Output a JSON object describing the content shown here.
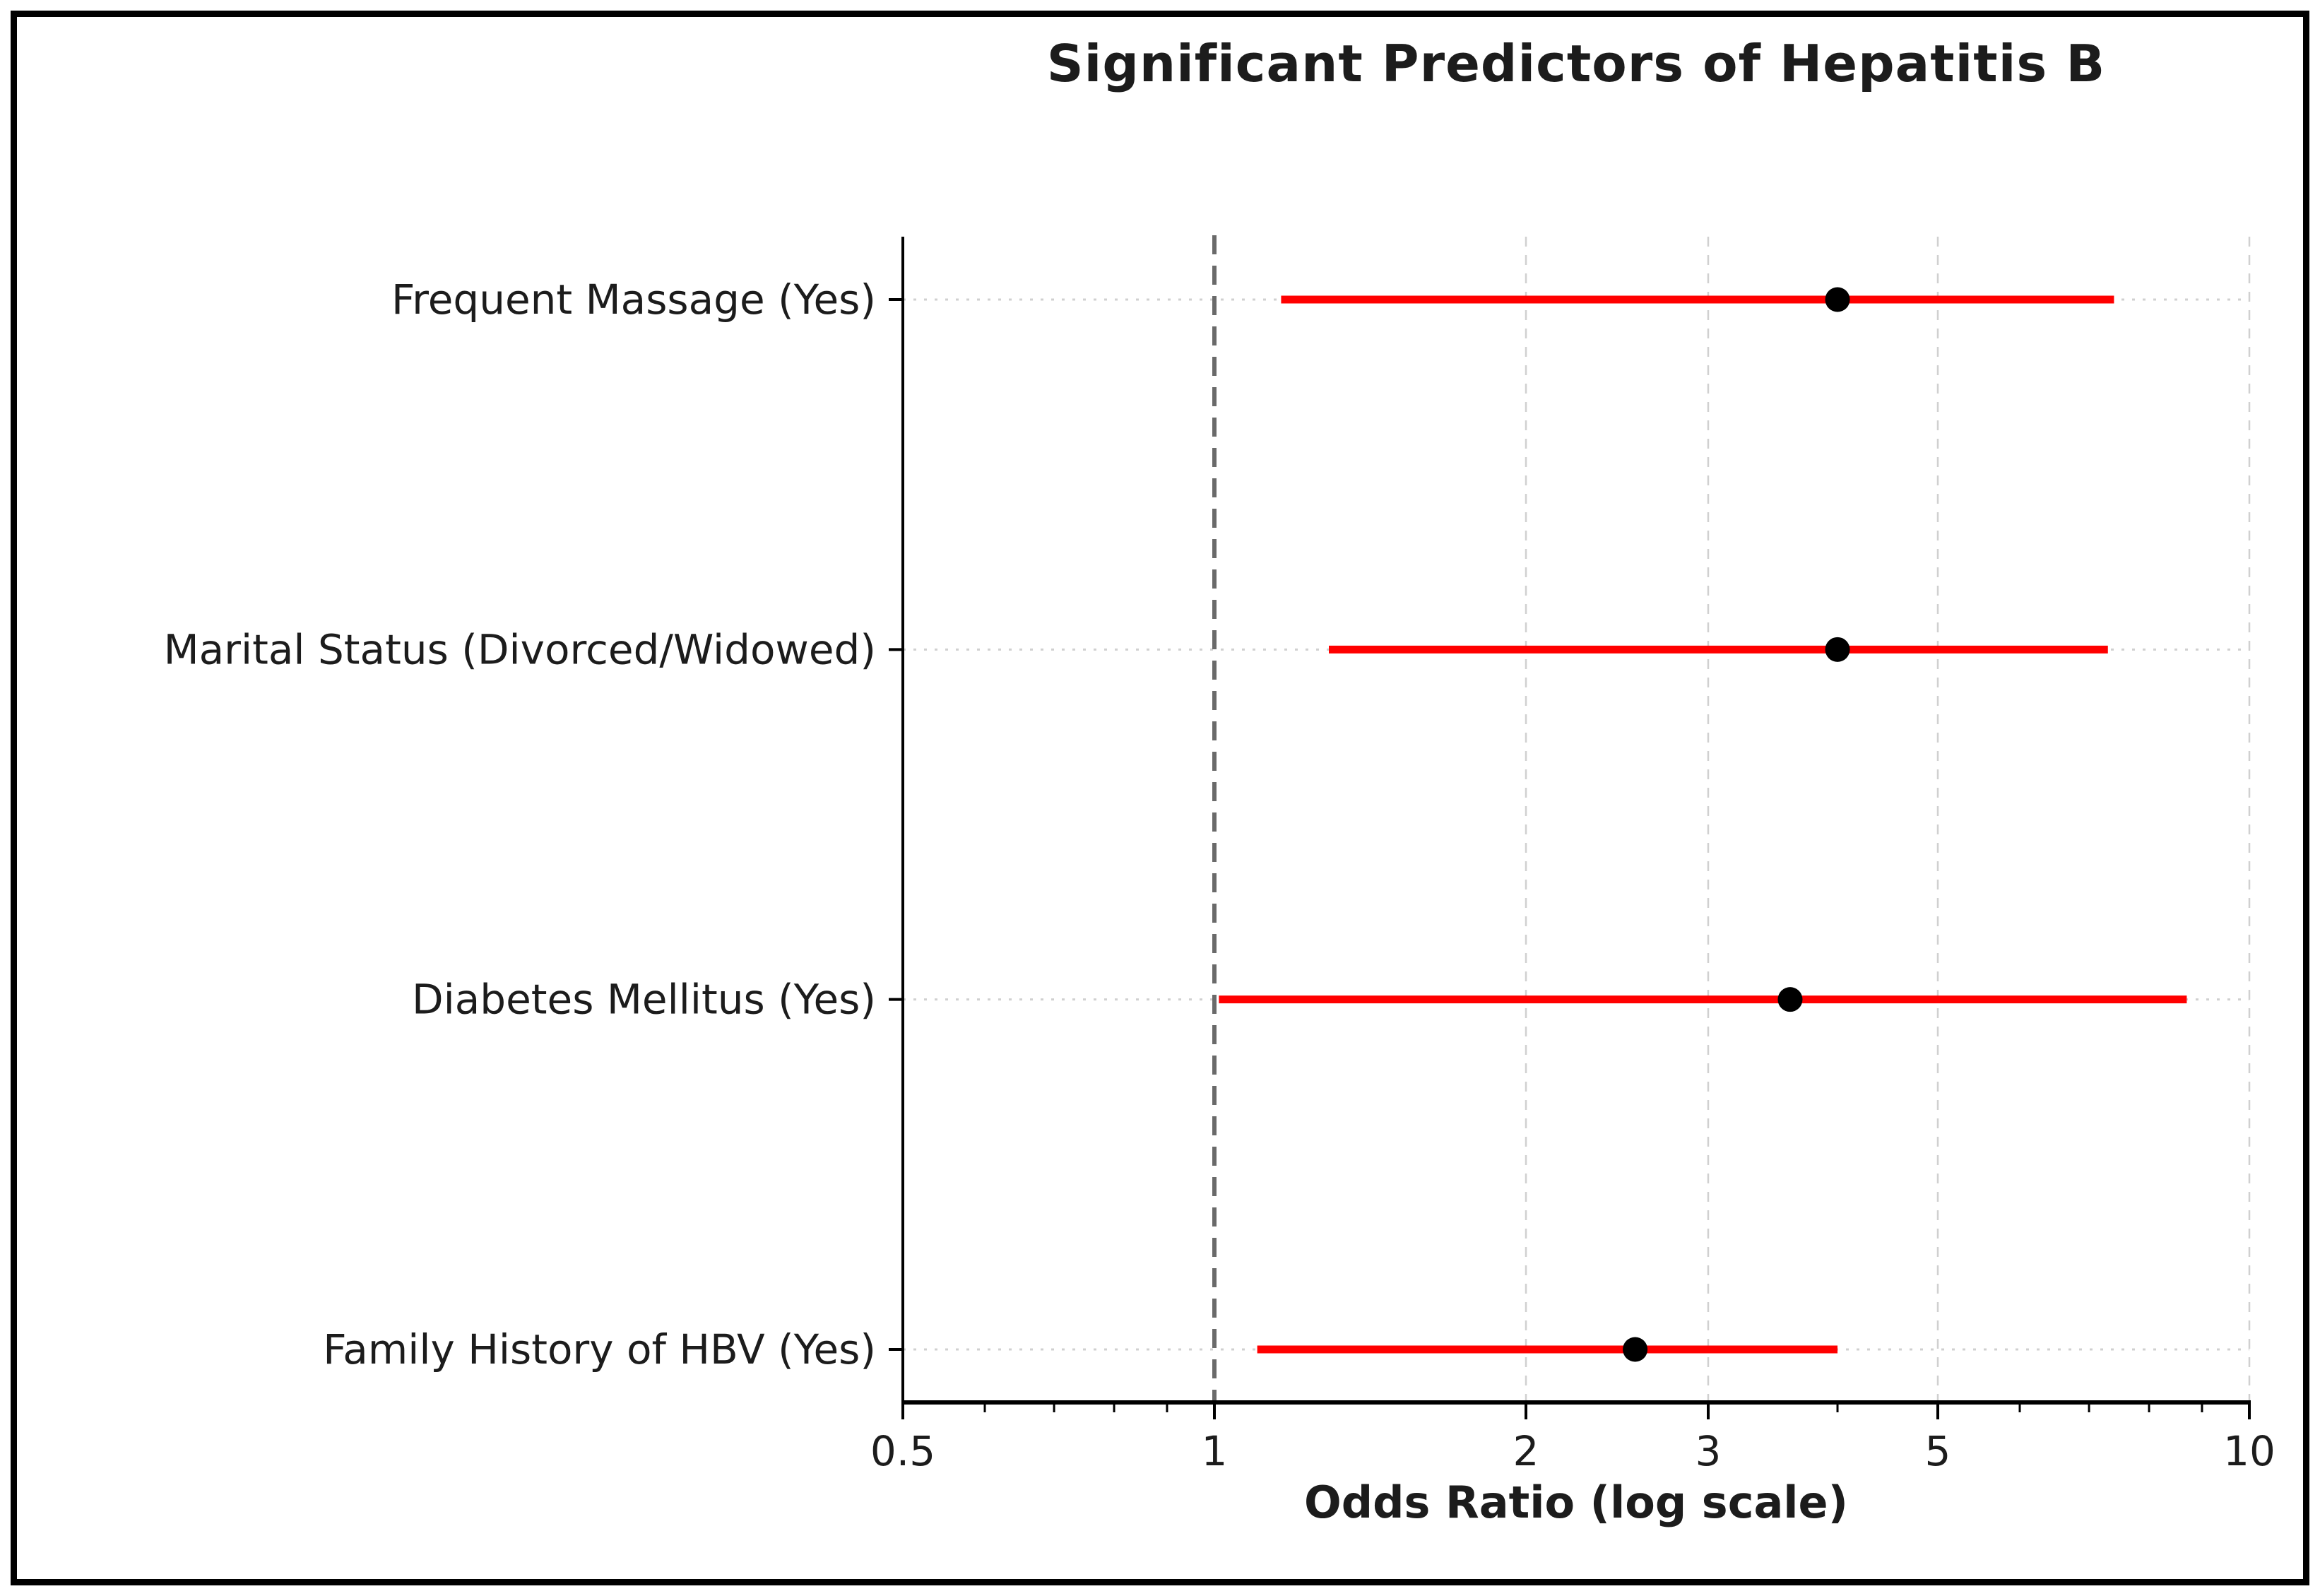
{
  "chart_data": {
    "type": "scatter",
    "subtype": "forest-plot-odds-ratios",
    "title": "Significant Predictors of Hepatitis B",
    "xlabel": "Odds Ratio (log scale)",
    "x_scale": "log",
    "xlim": [
      0.5,
      10
    ],
    "x_major_ticks": [
      {
        "value": 0.5,
        "label": "0.5"
      },
      {
        "value": 1,
        "label": "1"
      },
      {
        "value": 2,
        "label": "2"
      },
      {
        "value": 3,
        "label": "3"
      },
      {
        "value": 5,
        "label": "5"
      },
      {
        "value": 10,
        "label": "10"
      }
    ],
    "x_minor_ticks": [
      0.6,
      0.7,
      0.8,
      0.9,
      4,
      6,
      7,
      8,
      9
    ],
    "reference_line_x": 1,
    "grid": true,
    "legend": "none",
    "categories": [
      "Frequent Massage (Yes)",
      "Marital Status (Divorced/Widowed)",
      "Diabetes Mellitus (Yes)",
      "Family History of HBV (Yes)"
    ],
    "points": [
      {
        "category": "Frequent Massage (Yes)",
        "odds_ratio": 4.0,
        "ci_low": 1.16,
        "ci_high": 7.4
      },
      {
        "category": "Marital Status (Divorced/Widowed)",
        "odds_ratio": 4.0,
        "ci_low": 1.29,
        "ci_high": 7.3
      },
      {
        "category": "Diabetes Mellitus (Yes)",
        "odds_ratio": 3.6,
        "ci_low": 1.01,
        "ci_high": 8.7
      },
      {
        "category": "Family History of HBV (Yes)",
        "odds_ratio": 2.55,
        "ci_low": 1.1,
        "ci_high": 4.0
      }
    ],
    "colors": {
      "ci_line": "#ff0000",
      "point": "#000000",
      "reference_line": "#6a6a6a",
      "gridline": "#d0d0d0",
      "axis": "#000000",
      "text": "#1c1c1c"
    }
  }
}
